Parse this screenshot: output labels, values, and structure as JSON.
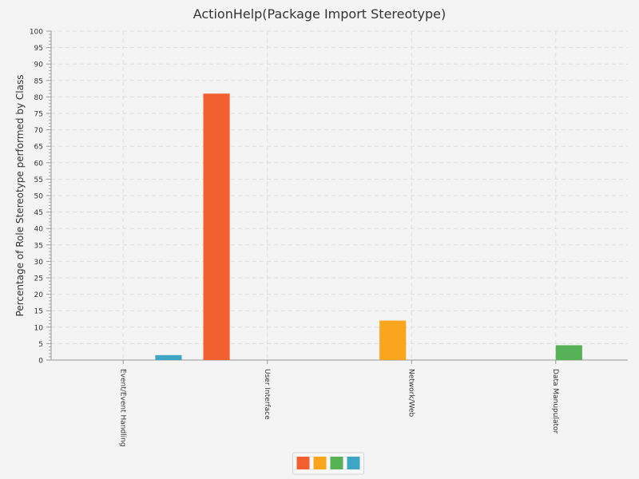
{
  "chart_data": {
    "type": "bar",
    "title": "ActionHelp(Package Import Stereotype)",
    "xlabel": "",
    "ylabel": "Percentage of Role Stereotype performed by Class",
    "ylim": [
      0,
      100
    ],
    "yticks": [
      0,
      5,
      10,
      15,
      20,
      25,
      30,
      35,
      40,
      45,
      50,
      55,
      60,
      65,
      70,
      75,
      80,
      85,
      90,
      95,
      100
    ],
    "grid": true,
    "categories": [
      "Event/Event Handling",
      "User Interface",
      "Network/Web",
      "Data Manupulator"
    ],
    "series": [
      {
        "name": "",
        "color": "#f26030",
        "values": [
          0,
          81,
          0,
          0
        ]
      },
      {
        "name": "",
        "color": "#f9a51d",
        "values": [
          0,
          0,
          12,
          0
        ]
      },
      {
        "name": "",
        "color": "#56b157",
        "values": [
          0,
          0,
          0,
          4.5
        ]
      },
      {
        "name": "",
        "color": "#3fa5c4",
        "values": [
          1.5,
          0,
          0,
          0
        ]
      }
    ],
    "legend_position": "bottom-center"
  }
}
